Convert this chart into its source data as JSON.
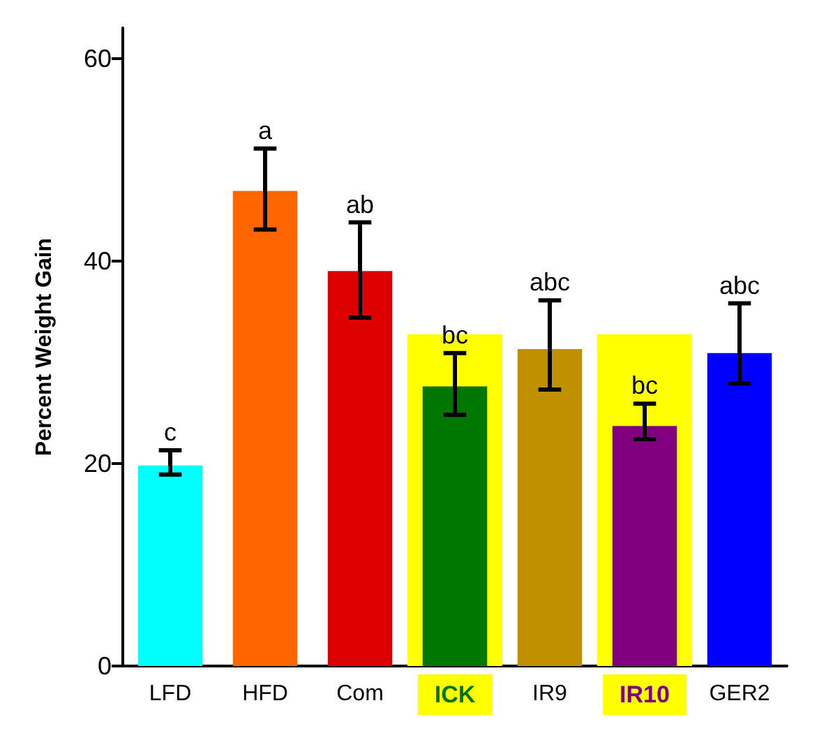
{
  "chart_data": {
    "type": "bar",
    "ylabel": "Percent Weight Gain",
    "categories": [
      "LFD",
      "HFD",
      "Com",
      "ICK",
      "IR9",
      "IR10",
      "GER2"
    ],
    "values": [
      19.8,
      46.9,
      39.0,
      27.6,
      31.3,
      23.7,
      30.9
    ],
    "colors": [
      "#00ffff",
      "#ff6600",
      "#dd0000",
      "#007700",
      "#c09000",
      "#800080",
      "#0000ff"
    ],
    "errors": [
      [
        18.9,
        21.3
      ],
      [
        43.1,
        51.1
      ],
      [
        34.4,
        43.8
      ],
      [
        24.8,
        30.9
      ],
      [
        27.3,
        36.1
      ],
      [
        22.4,
        25.9
      ],
      [
        27.9,
        35.8
      ]
    ],
    "value_labels": [
      "c",
      "a",
      "ab",
      "bc",
      "abc",
      "bc",
      "abc"
    ],
    "bands": [
      {
        "axis": "x",
        "from": "ICK",
        "to": "ICK",
        "color": "#ffff00"
      },
      {
        "axis": "x",
        "from": "IR10",
        "to": "IR10",
        "color": "#ffff00"
      }
    ],
    "ylim": [
      0,
      63
    ],
    "yticks": [
      0,
      20,
      40,
      60
    ]
  }
}
